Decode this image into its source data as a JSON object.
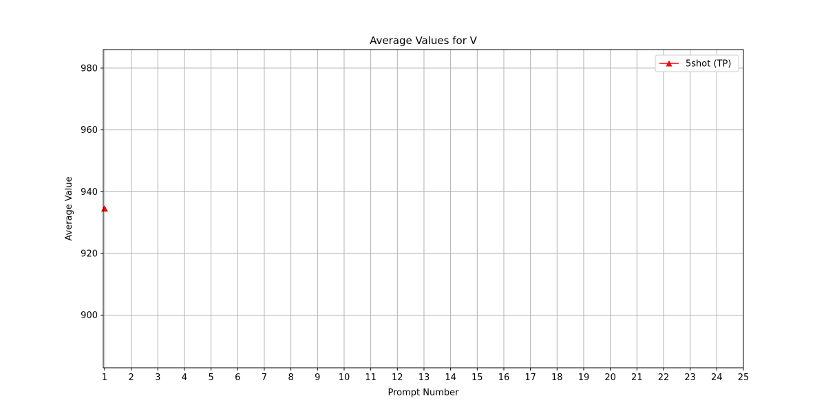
{
  "chart_data": {
    "type": "line",
    "title": "Average Values for V",
    "xlabel": "Prompt Number",
    "ylabel": "Average Value",
    "x_ticks": [
      1,
      2,
      3,
      4,
      5,
      6,
      7,
      8,
      9,
      10,
      11,
      12,
      13,
      14,
      15,
      16,
      17,
      18,
      19,
      20,
      21,
      22,
      23,
      24,
      25
    ],
    "y_ticks": [
      900,
      920,
      940,
      960,
      980
    ],
    "xlim": [
      0.95,
      25
    ],
    "ylim": [
      883,
      986
    ],
    "grid": true,
    "legend_position": "top-right",
    "series": [
      {
        "name": "5shot (TP)",
        "color": "#ff0000",
        "marker": "triangle-up",
        "points": [
          {
            "x": 1,
            "y": 934.5
          }
        ]
      }
    ]
  }
}
